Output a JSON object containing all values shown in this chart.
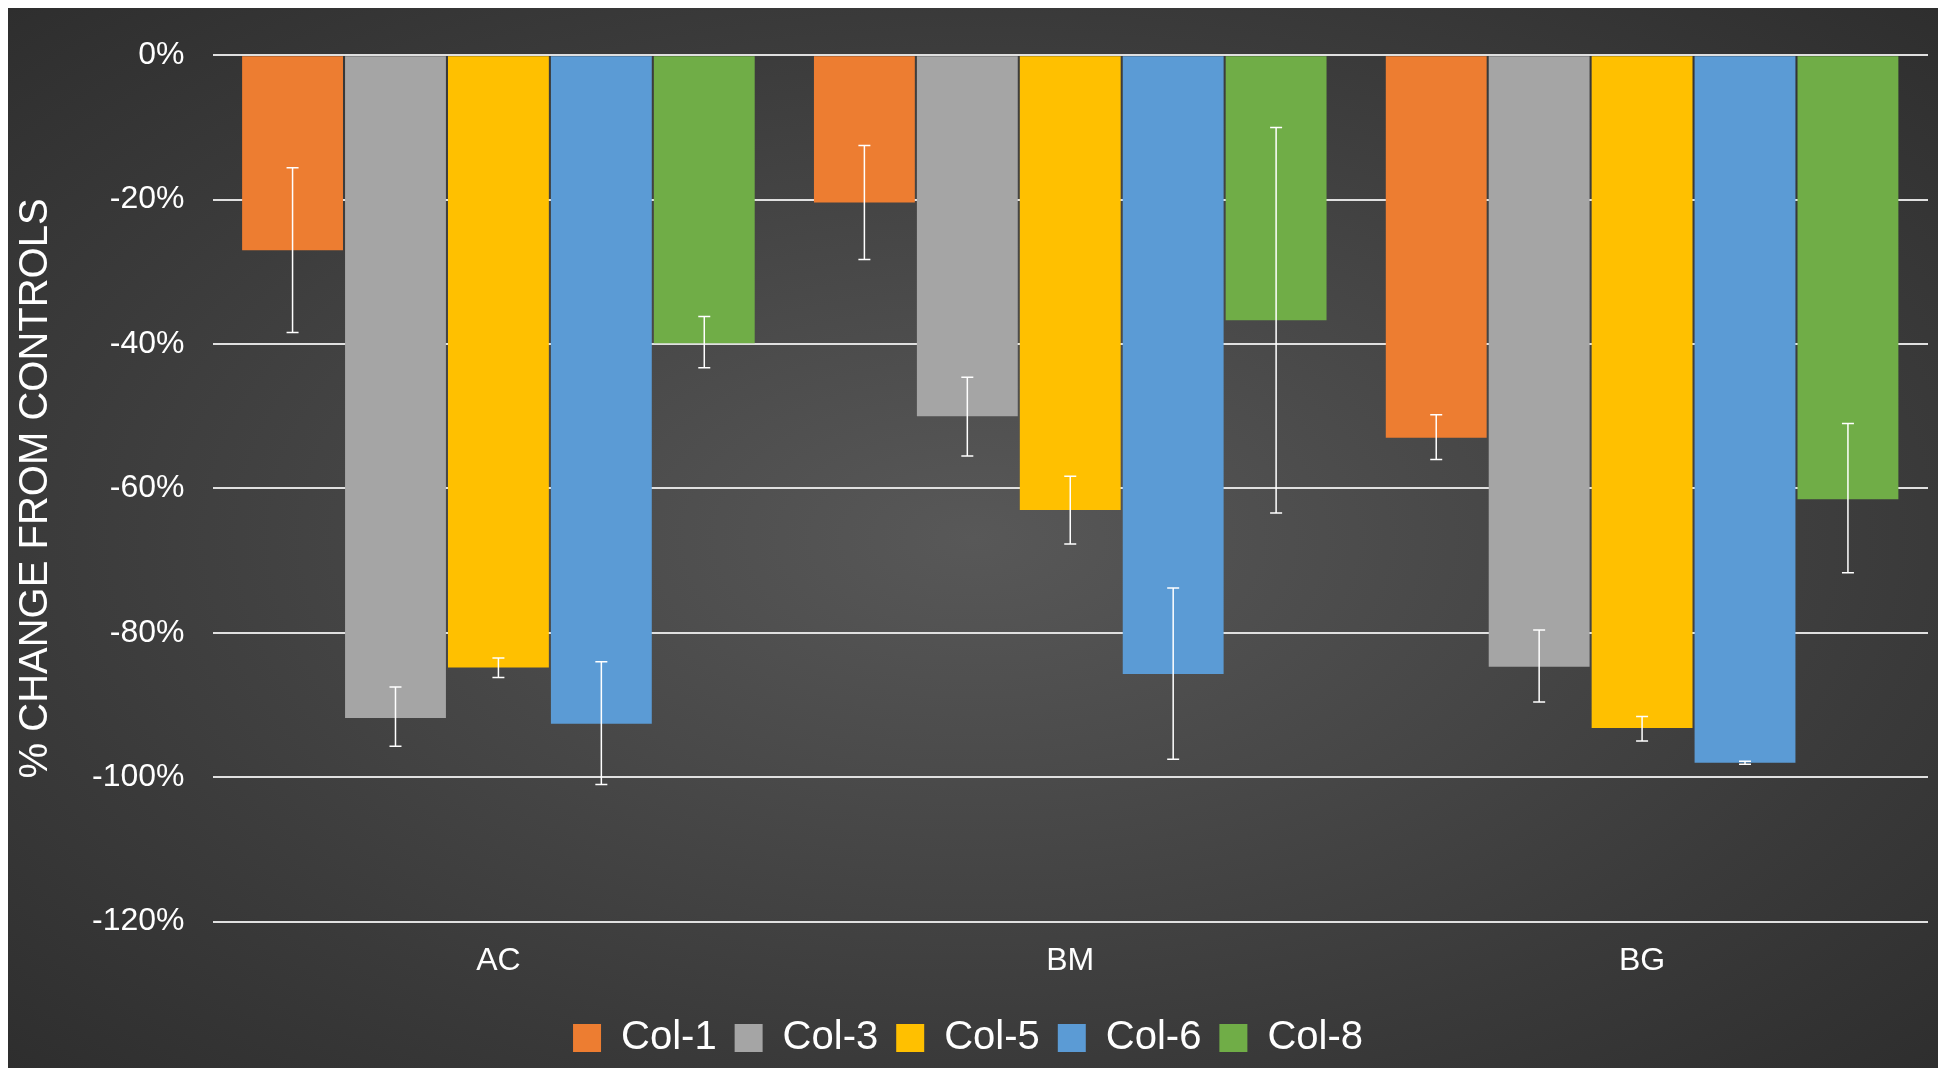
{
  "chart_data": {
    "type": "bar",
    "ylabel": "% CHANGE FROM CONTROLS",
    "categories": [
      "AC",
      "BM",
      "BG"
    ],
    "series": [
      {
        "name": "Col-1",
        "color": "#ed7d31",
        "values": [
          -27,
          -20.4,
          -53
        ],
        "errors": [
          [
            -38.4,
            -15.6
          ],
          [
            -28.3,
            -12.5
          ],
          [
            -56,
            -49.8
          ]
        ]
      },
      {
        "name": "Col-3",
        "color": "#a5a5a5",
        "values": [
          -91.8,
          -50,
          -84.7
        ],
        "errors": [
          [
            -95.7,
            -87.5
          ],
          [
            -55.5,
            -44.6
          ],
          [
            -89.6,
            -79.6
          ]
        ]
      },
      {
        "name": "Col-5",
        "color": "#ffc000",
        "values": [
          -84.8,
          -63,
          -93.2
        ],
        "errors": [
          [
            -86.2,
            -83.5
          ],
          [
            -67.7,
            -58.3
          ],
          [
            -95,
            -91.6
          ]
        ]
      },
      {
        "name": "Col-6",
        "color": "#5b9bd5",
        "values": [
          -92.6,
          -85.7,
          -98
        ],
        "errors": [
          [
            -101,
            -84
          ],
          [
            -97.5,
            -73.8
          ],
          [
            -98.2,
            -97.8
          ]
        ]
      },
      {
        "name": "Col-8",
        "color": "#70ad47",
        "values": [
          -39.9,
          -36.7,
          -61.5
        ],
        "errors": [
          [
            -43.3,
            -36.2
          ],
          [
            -63.4,
            -10
          ],
          [
            -71.7,
            -51
          ]
        ]
      }
    ],
    "ylim": [
      -120,
      0
    ],
    "yticks": [
      {
        "value": -120,
        "label": "-120%"
      },
      {
        "value": -100,
        "label": "-100%"
      },
      {
        "value": -80,
        "label": "-80%"
      },
      {
        "value": -60,
        "label": "-60%"
      },
      {
        "value": -40,
        "label": "-40%"
      },
      {
        "value": -20,
        "label": "-20%"
      },
      {
        "value": 0,
        "label": "0%"
      }
    ],
    "grid": "y",
    "legend": "bottom"
  }
}
